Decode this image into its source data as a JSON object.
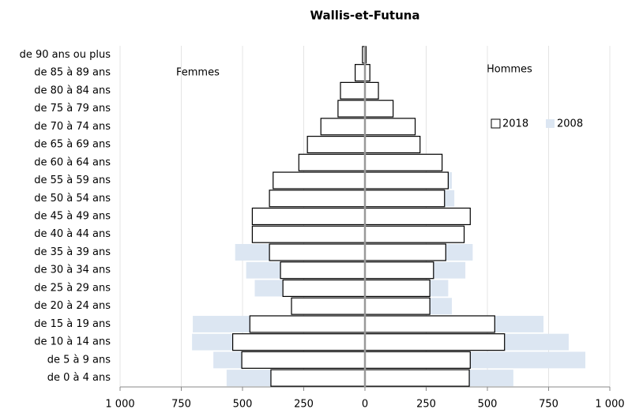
{
  "chart_data": {
    "type": "pyramid",
    "title": "Wallis-et-Futuna",
    "left_label": "Femmes",
    "right_label": "Hommes",
    "categories": [
      "de 0 à 4 ans",
      "de 5 à 9 ans",
      "de 10 à 14 ans",
      "de 15 à 19 ans",
      "de 20 à 24 ans",
      "de 25 à 29 ans",
      "de 30 à 34 ans",
      "de 35 à 39 ans",
      "de 40 à 44 ans",
      "de 45 à 49 ans",
      "de 50 à 54 ans",
      "de 55 à 59 ans",
      "de 60 à 64 ans",
      "de 65 à 69 ans",
      "de 70 à 74 ans",
      "de 75 à 79 ans",
      "de 80 à 84 ans",
      "de 85 à 89 ans",
      "de 90 ans ou plus"
    ],
    "series": [
      {
        "name": "2018",
        "color": "#ffffff",
        "edge": "#000000",
        "women": [
          -384,
          -503,
          -540,
          -470,
          -300,
          -335,
          -345,
          -390,
          -460,
          -460,
          -390,
          -375,
          -270,
          -235,
          -180,
          -110,
          -100,
          -40,
          -10
        ],
        "men": [
          426,
          430,
          570,
          530,
          265,
          265,
          280,
          330,
          405,
          430,
          325,
          340,
          315,
          225,
          205,
          115,
          55,
          20,
          5
        ]
      },
      {
        "name": "2008",
        "color": "#dce6f2",
        "women": [
          -565,
          -619,
          -706,
          -703,
          -280,
          -450,
          -485,
          -530,
          -435,
          -435,
          -325,
          -335,
          -250,
          -170,
          -155,
          -90,
          -60,
          -25,
          -8
        ],
        "men": [
          606,
          900,
          832,
          729,
          355,
          340,
          410,
          440,
          380,
          380,
          365,
          355,
          290,
          195,
          105,
          65,
          35,
          15,
          5
        ]
      }
    ],
    "xlim": [
      -1000,
      1000
    ],
    "xticks": [
      {
        "value": -1000,
        "label": "1 000"
      },
      {
        "value": -750,
        "label": "750"
      },
      {
        "value": -500,
        "label": "500"
      },
      {
        "value": -250,
        "label": "250"
      },
      0,
      250,
      500,
      750,
      {
        "value": 1000,
        "label": "1 000"
      }
    ],
    "grid": true
  }
}
